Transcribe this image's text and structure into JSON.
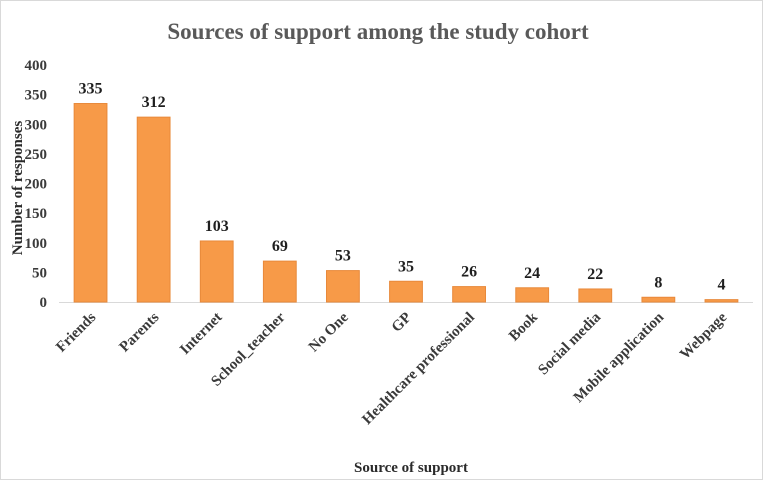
{
  "chart_data": {
    "type": "bar",
    "title": "Sources of support among the study cohort",
    "xlabel": "Source of support",
    "ylabel": "Number of responses",
    "categories": [
      "Friends",
      "Parents",
      "Internet",
      "School_teacher",
      "No One",
      "GP",
      "Healthcare professional",
      "Book",
      "Social media",
      "Mobile application",
      "Webpage"
    ],
    "values": [
      335,
      312,
      103,
      69,
      53,
      35,
      26,
      24,
      22,
      8,
      4
    ],
    "ylim": [
      0,
      400
    ],
    "yticks": [
      "0",
      "50",
      "100",
      "150",
      "200",
      "250",
      "300",
      "350",
      "400"
    ],
    "grid": false,
    "legend": "none",
    "bar_color": "#f79a48",
    "bar_edge_color": "#e8893a"
  }
}
